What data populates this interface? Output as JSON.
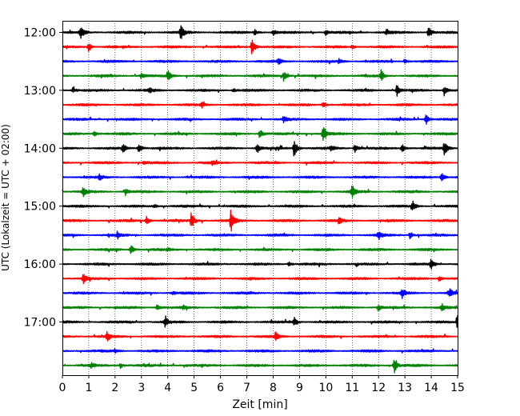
{
  "chart_data": {
    "type": "line",
    "title": "",
    "xlabel": "Zeit  [min]",
    "ylabel": "UTC (Lokalzeit = UTC + 02:00)",
    "xlim": [
      0,
      15
    ],
    "x_ticks": [
      0,
      1,
      2,
      3,
      4,
      5,
      6,
      7,
      8,
      9,
      10,
      11,
      12,
      13,
      14,
      15
    ],
    "y_ticks": [
      "12:00",
      "13:00",
      "14:00",
      "15:00",
      "16:00",
      "17:00"
    ],
    "grid": "vertical dotted",
    "trace_colors": [
      "#000000",
      "#ff0000",
      "#0000ff",
      "#008000"
    ],
    "row_start_times": [
      "12:00",
      "12:15",
      "12:30",
      "12:45",
      "13:00",
      "13:15",
      "13:30",
      "13:45",
      "14:00",
      "14:15",
      "14:30",
      "14:45",
      "15:00",
      "15:15",
      "15:30",
      "15:45",
      "16:00",
      "16:15",
      "16:30",
      "16:45",
      "17:00",
      "17:15",
      "17:30",
      "17:45"
    ],
    "events": [
      [
        [
          0.7,
          0.8
        ],
        [
          4.5,
          1.0
        ],
        [
          7.3,
          0.3
        ],
        [
          8.0,
          0.3
        ],
        [
          10.0,
          0.3
        ],
        [
          12.3,
          0.3
        ],
        [
          13.9,
          0.7
        ]
      ],
      [
        [
          1.0,
          0.5
        ],
        [
          7.2,
          1.0
        ],
        [
          11.0,
          0.2
        ]
      ],
      [
        [
          8.2,
          0.3
        ],
        [
          10.5,
          0.3
        ],
        [
          13.0,
          0.2
        ]
      ],
      [
        [
          3.0,
          0.3
        ],
        [
          4.0,
          0.6
        ],
        [
          8.4,
          0.6
        ],
        [
          12.1,
          0.6
        ]
      ],
      [
        [
          0.4,
          0.3
        ],
        [
          3.3,
          0.3
        ],
        [
          6.5,
          0.2
        ],
        [
          12.7,
          0.6
        ],
        [
          14.5,
          0.6
        ]
      ],
      [
        [
          5.3,
          0.3
        ],
        [
          9.9,
          0.3
        ]
      ],
      [
        [
          8.4,
          0.3
        ],
        [
          13.8,
          0.6
        ]
      ],
      [
        [
          1.2,
          0.3
        ],
        [
          7.5,
          0.5
        ],
        [
          9.9,
          1.0
        ]
      ],
      [
        [
          2.3,
          0.6
        ],
        [
          2.9,
          0.6
        ],
        [
          7.4,
          0.6
        ],
        [
          8.8,
          1.0
        ],
        [
          10.2,
          0.3
        ],
        [
          11.1,
          0.5
        ],
        [
          12.9,
          0.5
        ],
        [
          14.5,
          0.9
        ]
      ],
      [
        [
          3.1,
          0.2
        ],
        [
          5.7,
          0.2
        ]
      ],
      [
        [
          1.4,
          0.3
        ],
        [
          14.4,
          0.6
        ]
      ],
      [
        [
          0.8,
          0.5
        ],
        [
          2.4,
          0.4
        ],
        [
          11.0,
          0.8
        ]
      ],
      [
        [
          3.5,
          0.2
        ],
        [
          13.3,
          0.6
        ]
      ],
      [
        [
          3.2,
          0.5
        ],
        [
          4.9,
          0.9
        ],
        [
          6.4,
          1.2
        ],
        [
          10.5,
          0.3
        ]
      ],
      [
        [
          2.1,
          0.4
        ],
        [
          12.0,
          0.5
        ],
        [
          13.2,
          0.4
        ]
      ],
      [
        [
          2.6,
          0.6
        ],
        [
          4.0,
          0.2
        ]
      ],
      [
        [
          8.6,
          0.2
        ],
        [
          14.0,
          0.6
        ]
      ],
      [
        [
          0.8,
          0.5
        ],
        [
          14.3,
          0.3
        ]
      ],
      [
        [
          4.2,
          0.2
        ],
        [
          12.9,
          0.5
        ],
        [
          14.7,
          0.6
        ]
      ],
      [
        [
          3.6,
          0.3
        ],
        [
          4.6,
          0.2
        ],
        [
          12.0,
          0.4
        ],
        [
          14.4,
          0.4
        ]
      ],
      [
        [
          3.9,
          0.5
        ],
        [
          8.8,
          0.5
        ],
        [
          15.0,
          0.9
        ]
      ],
      [
        [
          1.7,
          0.5
        ],
        [
          8.1,
          0.5
        ]
      ],
      [
        [
          2.0,
          0.2
        ]
      ],
      [
        [
          1.1,
          0.3
        ],
        [
          2.2,
          0.3
        ],
        [
          12.6,
          0.8
        ]
      ]
    ]
  }
}
